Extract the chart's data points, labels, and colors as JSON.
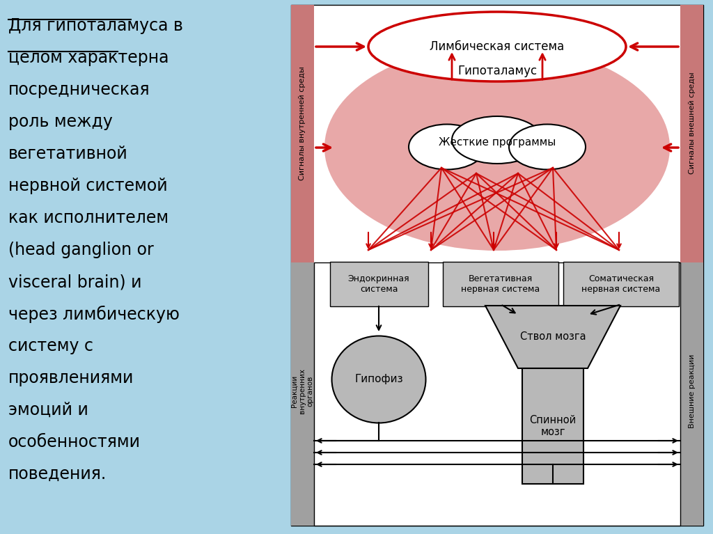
{
  "bg_color": "#aad4e6",
  "pink_color": "#e8a8a8",
  "pink_stripe": "#c87878",
  "red_color": "#cc0000",
  "gray_box": "#b8b8b8",
  "gray_stripe": "#a0a0a0",
  "white": "#ffffff",
  "black": "#000000",
  "limbic_label": "Лимбическая система",
  "hypothalamus_label": "Гипоталамус",
  "rigid_programs_label": "Жесткие программы",
  "endocrine_label": "Эндокринная\nсистема",
  "vegetative_label": "Вегетативная\nнервная система",
  "somatic_label": "Соматическая\nнервная система",
  "inner_signals": "Сигналы внутренней среды",
  "outer_signals": "Сигналы внешней среды",
  "inner_reactions": "Реакции\nвнутренних органов",
  "outer_reactions": "Внешние реакции",
  "hypophysis_label": "Гипофиз",
  "brainstem_label": "Ствол мозга",
  "spinal_label": "Спинной\nмозг",
  "left_text_line1": "Для гипоталамуса в",
  "left_text_line2": "целом характерна",
  "left_text_rest": "посредническая\nроль между\nвегетативной\nнервной системой\nкак исполнителем\n(head ganglion or\nvisceral brain) и\nчерез лимбическую\nсистему с\nпроявлениями\nэмоций и\nособенностями\nповедения."
}
